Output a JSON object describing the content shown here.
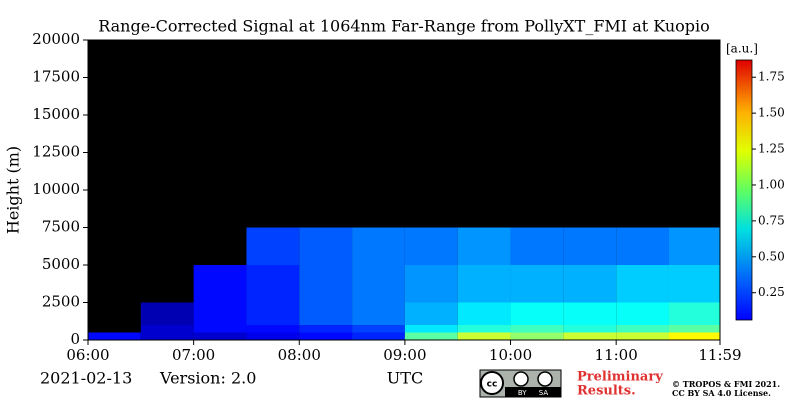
{
  "chart_data": {
    "type": "heatmap",
    "title": "Range-Corrected Signal at 1064nm Far-Range from PollyXT_FMI at Kuopio",
    "y_label": "Height (m)",
    "x_label": "UTC",
    "date": "2021-02-13",
    "version": "Version: 2.0",
    "colorbar_label": "[a.u.]",
    "preliminary": "Preliminary",
    "results": "Results.",
    "license_badge": "BY SA",
    "copyright": "© TROPOS & FMI 2021.",
    "license": "CC BY SA 4.0 License.",
    "xlim": [
      6,
      11.983
    ],
    "xticks": [
      {
        "value": 6,
        "label": "06:00"
      },
      {
        "value": 7,
        "label": "07:00"
      },
      {
        "value": 8,
        "label": "08:00"
      },
      {
        "value": 9,
        "label": "09:00"
      },
      {
        "value": 10,
        "label": "10:00"
      },
      {
        "value": 11,
        "label": "11:00"
      },
      {
        "value": 11.983,
        "label": "11:59"
      }
    ],
    "ylim": [
      0,
      20000
    ],
    "yticks": [
      0,
      2500,
      5000,
      7500,
      10000,
      12500,
      15000,
      17500,
      20000
    ],
    "clim": [
      0.06,
      1.87
    ],
    "cbticks": [
      0.25,
      {
        "value": 0.5,
        "label": "0.50"
      },
      0.75,
      {
        "value": 1.0,
        "label": "1.00"
      },
      1.25,
      {
        "value": 1.5,
        "label": "1.50"
      },
      1.75
    ],
    "colormap": "jet",
    "xbins": [
      6,
      6.5,
      7,
      7.5,
      8,
      8.5,
      9,
      9.5,
      10,
      10.5,
      11,
      11.5,
      11.983
    ],
    "ybins": [
      0,
      500,
      1000,
      2500,
      5000,
      7500
    ],
    "z": [
      [
        0.3,
        0.2,
        0.2,
        0.25,
        0.3,
        0.35,
        0.9,
        1.1,
        1.0,
        1.1,
        1.1,
        1.2
      ],
      [
        null,
        0.2,
        0.3,
        0.3,
        0.35,
        0.4,
        0.7,
        0.8,
        0.85,
        0.8,
        0.85,
        0.9
      ],
      [
        null,
        0.15,
        0.3,
        0.35,
        0.45,
        0.5,
        0.6,
        0.7,
        0.75,
        0.75,
        0.75,
        0.8
      ],
      [
        null,
        null,
        0.3,
        0.35,
        0.45,
        0.5,
        0.55,
        0.6,
        0.6,
        0.6,
        0.65,
        0.65
      ],
      [
        null,
        null,
        null,
        0.4,
        0.45,
        0.5,
        0.5,
        0.55,
        0.5,
        0.5,
        0.5,
        0.55
      ]
    ]
  }
}
